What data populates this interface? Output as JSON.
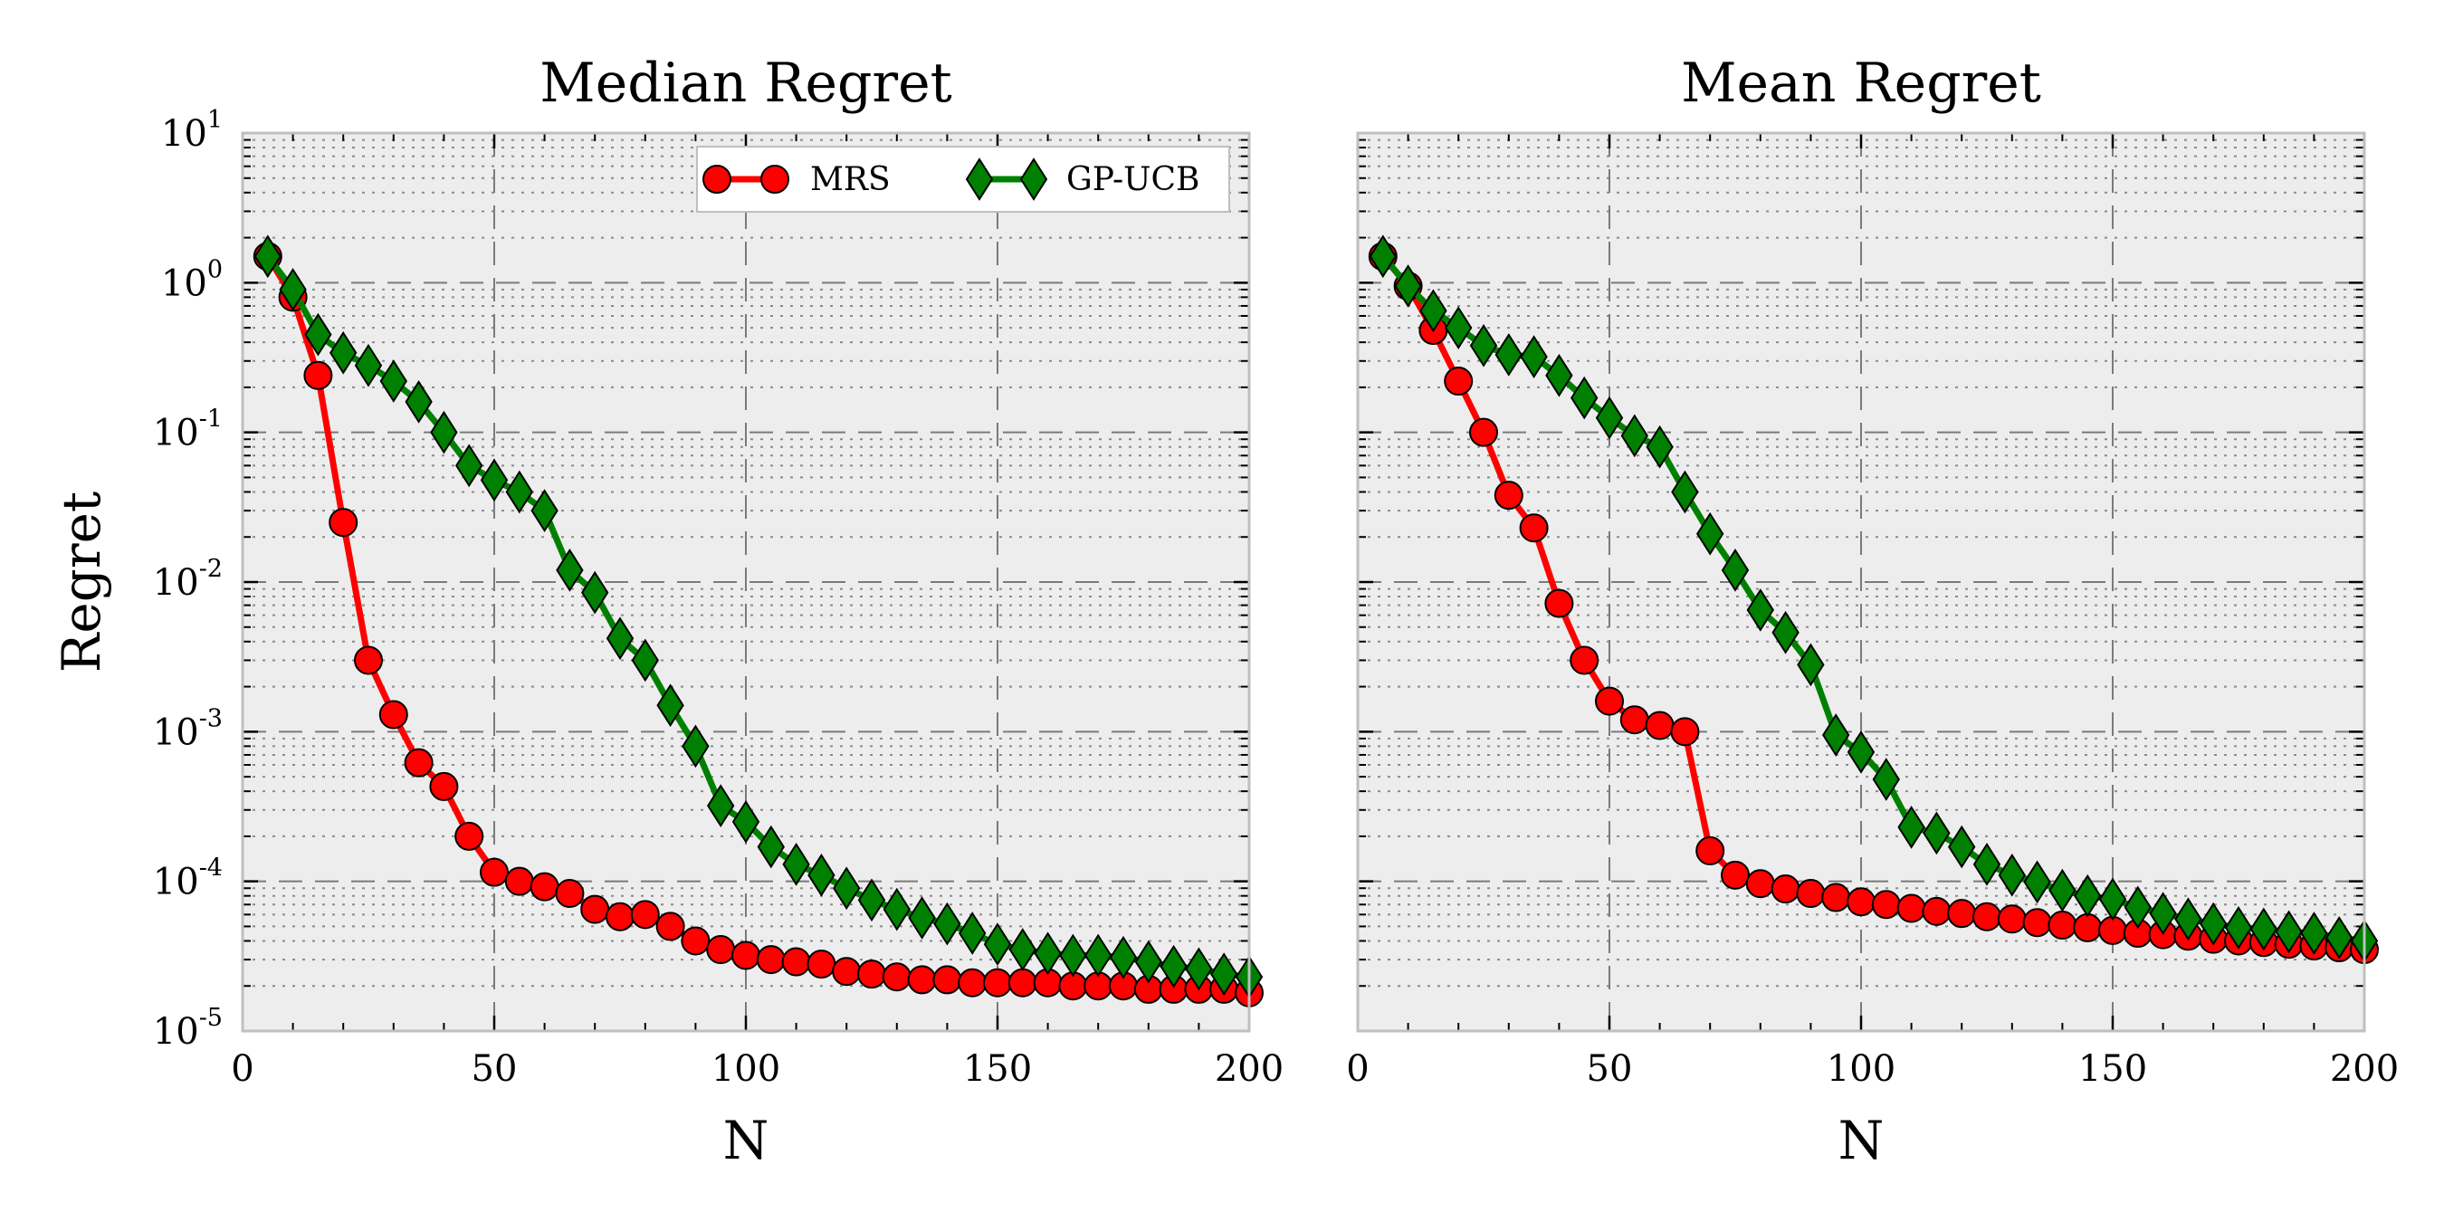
{
  "chart_data": [
    {
      "type": "line",
      "title": "Median Regret",
      "xlabel": "N",
      "ylabel": "Regret",
      "xlim": [
        0,
        200
      ],
      "ylim": [
        1e-05,
        10
      ],
      "yscale": "log",
      "grid": true,
      "legend_position": "top-right",
      "xticks": [
        "0",
        "50",
        "100",
        "150",
        "200"
      ],
      "yticks": [
        {
          "base": "10",
          "exp": "1"
        },
        {
          "base": "10",
          "exp": "0"
        },
        {
          "base": "10",
          "exp": "-1"
        },
        {
          "base": "10",
          "exp": "-2"
        },
        {
          "base": "10",
          "exp": "-3"
        },
        {
          "base": "10",
          "exp": "-4"
        },
        {
          "base": "10",
          "exp": "-5"
        }
      ],
      "x": [
        5,
        10,
        15,
        20,
        25,
        30,
        35,
        40,
        45,
        50,
        55,
        60,
        65,
        70,
        75,
        80,
        85,
        90,
        95,
        100,
        105,
        110,
        115,
        120,
        125,
        130,
        135,
        140,
        145,
        150,
        155,
        160,
        165,
        170,
        175,
        180,
        185,
        190,
        195,
        200
      ],
      "series": [
        {
          "name": "MRS",
          "color": "#ff0000",
          "marker": "circle",
          "values": [
            1.5,
            0.8,
            0.24,
            0.025,
            0.003,
            0.0013,
            0.00062,
            0.00043,
            0.0002,
            0.000115,
            0.0001,
            9.2e-05,
            8.3e-05,
            6.5e-05,
            5.8e-05,
            6e-05,
            5e-05,
            4e-05,
            3.5e-05,
            3.2e-05,
            3e-05,
            2.9e-05,
            2.8e-05,
            2.5e-05,
            2.4e-05,
            2.3e-05,
            2.2e-05,
            2.2e-05,
            2.1e-05,
            2.1e-05,
            2.1e-05,
            2.1e-05,
            2e-05,
            2e-05,
            2e-05,
            1.9e-05,
            1.9e-05,
            1.9e-05,
            1.9e-05,
            1.8e-05
          ]
        },
        {
          "name": "GP-UCB",
          "color": "#008000",
          "marker": "diamond",
          "values": [
            1.5,
            0.9,
            0.45,
            0.34,
            0.28,
            0.22,
            0.16,
            0.1,
            0.06,
            0.048,
            0.04,
            0.03,
            0.012,
            0.0085,
            0.0042,
            0.003,
            0.0015,
            0.0008,
            0.00032,
            0.00025,
            0.00017,
            0.00013,
            0.00011,
            9e-05,
            7.5e-05,
            6.5e-05,
            5.7e-05,
            5.2e-05,
            4.5e-05,
            3.8e-05,
            3.5e-05,
            3.3e-05,
            3.2e-05,
            3.2e-05,
            3.1e-05,
            2.9e-05,
            2.7e-05,
            2.6e-05,
            2.4e-05,
            2.3e-05
          ]
        }
      ]
    },
    {
      "type": "line",
      "title": "Mean Regret",
      "xlabel": "N",
      "ylabel": "",
      "xlim": [
        0,
        200
      ],
      "ylim": [
        1e-05,
        10
      ],
      "yscale": "log",
      "grid": true,
      "xticks": [
        "0",
        "50",
        "100",
        "150",
        "200"
      ],
      "x": [
        5,
        10,
        15,
        20,
        25,
        30,
        35,
        40,
        45,
        50,
        55,
        60,
        65,
        70,
        75,
        80,
        85,
        90,
        95,
        100,
        105,
        110,
        115,
        120,
        125,
        130,
        135,
        140,
        145,
        150,
        155,
        160,
        165,
        170,
        175,
        180,
        185,
        190,
        195,
        200
      ],
      "series": [
        {
          "name": "MRS",
          "color": "#ff0000",
          "marker": "circle",
          "values": [
            1.5,
            0.95,
            0.48,
            0.22,
            0.1,
            0.038,
            0.023,
            0.0072,
            0.003,
            0.0016,
            0.0012,
            0.0011,
            0.001,
            0.00016,
            0.00011,
            9.65e-05,
            8.9e-05,
            8.3e-05,
            7.8e-05,
            7.3e-05,
            7e-05,
            6.6e-05,
            6.3e-05,
            6.1e-05,
            5.8e-05,
            5.6e-05,
            5.3e-05,
            5.1e-05,
            4.9e-05,
            4.7e-05,
            4.5e-05,
            4.4e-05,
            4.3e-05,
            4.1e-05,
            4e-05,
            3.9e-05,
            3.8e-05,
            3.7e-05,
            3.6e-05,
            3.5e-05
          ]
        },
        {
          "name": "GP-UCB",
          "color": "#008000",
          "marker": "diamond",
          "values": [
            1.5,
            0.95,
            0.65,
            0.5,
            0.38,
            0.33,
            0.32,
            0.24,
            0.17,
            0.125,
            0.095,
            0.08,
            0.04,
            0.021,
            0.012,
            0.0065,
            0.0046,
            0.0028,
            0.00095,
            0.00073,
            0.00048,
            0.00023,
            0.00021,
            0.00017,
            0.00013,
            0.00011,
            9.9e-05,
            8.7e-05,
            8e-05,
            7.6e-05,
            6.7e-05,
            6.1e-05,
            5.6e-05,
            5.2e-05,
            4.9e-05,
            4.8e-05,
            4.6e-05,
            4.5e-05,
            4.2e-05,
            4e-05
          ]
        }
      ]
    }
  ]
}
